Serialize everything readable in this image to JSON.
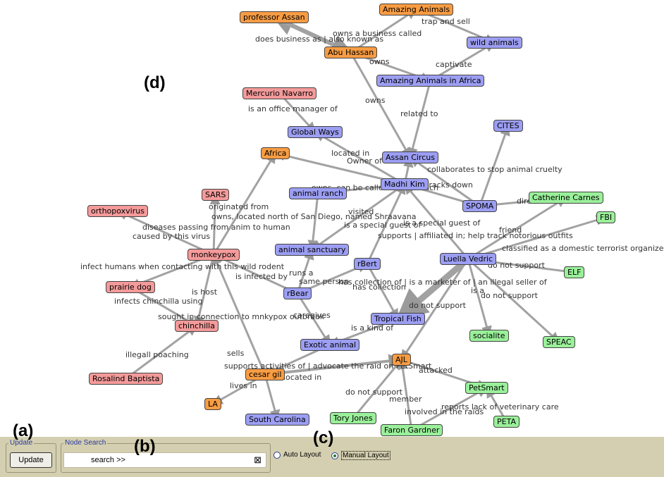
{
  "panel_labels": {
    "a": "(a)",
    "b": "(b)",
    "c": "(c)",
    "d": "(d)"
  },
  "toolbar": {
    "update_group_title": "Update",
    "update_button": "Update",
    "search_group_title": "Node Search",
    "search_value": "search >>",
    "clear_icon": "⊠",
    "auto_layout": "Auto Layout",
    "manual_layout": "Manual Layout",
    "selected_layout": "manual"
  },
  "nodes": [
    {
      "id": "professor_assan",
      "label": "professor Assan",
      "color": "orange"
    },
    {
      "id": "amazing_animals",
      "label": "Amazing Animals",
      "color": "orange"
    },
    {
      "id": "abu_hassan",
      "label": "Abu Hassan",
      "color": "orange"
    },
    {
      "id": "wild_animals",
      "label": "wild animals",
      "color": "blue"
    },
    {
      "id": "amazing_africa",
      "label": "Amazing Animals in Africa",
      "color": "blue"
    },
    {
      "id": "mercurio",
      "label": "Mercurio Navarro",
      "color": "pink"
    },
    {
      "id": "global_ways",
      "label": "Global Ways",
      "color": "blue"
    },
    {
      "id": "cites",
      "label": "CITES",
      "color": "blue"
    },
    {
      "id": "africa",
      "label": "Africa",
      "color": "orange"
    },
    {
      "id": "assan_circus",
      "label": "Assan Circus",
      "color": "blue"
    },
    {
      "id": "madhi_kim",
      "label": "Madhi Kim",
      "color": "blue"
    },
    {
      "id": "animal_ranch",
      "label": "animal ranch",
      "color": "blue"
    },
    {
      "id": "sars",
      "label": "SARS",
      "color": "pink"
    },
    {
      "id": "spoma",
      "label": "SPOMA",
      "color": "blue"
    },
    {
      "id": "catherine",
      "label": "Catherine Carnes",
      "color": "green"
    },
    {
      "id": "orthopoxvirus",
      "label": "orthopoxvirus",
      "color": "pink"
    },
    {
      "id": "fbi",
      "label": "FBI",
      "color": "green"
    },
    {
      "id": "animal_sanctuary",
      "label": "animal sanctuary",
      "color": "blue"
    },
    {
      "id": "monkeypox",
      "label": "monkeypox",
      "color": "pink"
    },
    {
      "id": "luella",
      "label": "Luella Vedric",
      "color": "blue"
    },
    {
      "id": "rbert",
      "label": "rBert",
      "color": "blue"
    },
    {
      "id": "elf",
      "label": "ELF",
      "color": "green"
    },
    {
      "id": "prairie_dog",
      "label": "prairie dog",
      "color": "pink"
    },
    {
      "id": "rbear",
      "label": "rBear",
      "color": "blue"
    },
    {
      "id": "tropical_fish",
      "label": "Tropical Fish",
      "color": "blue"
    },
    {
      "id": "chinchilla",
      "label": "chinchilla",
      "color": "pink"
    },
    {
      "id": "socialite",
      "label": "socialite",
      "color": "green"
    },
    {
      "id": "exotic_animal",
      "label": "Exotic animal",
      "color": "blue"
    },
    {
      "id": "speac",
      "label": "SPEAC",
      "color": "green"
    },
    {
      "id": "ajl",
      "label": "AJL",
      "color": "orange"
    },
    {
      "id": "cesar_gil",
      "label": "cesar gil",
      "color": "orange"
    },
    {
      "id": "rosalind",
      "label": "Rosalind Baptista",
      "color": "pink"
    },
    {
      "id": "petsmart",
      "label": "PetSmart",
      "color": "green"
    },
    {
      "id": "la",
      "label": "LA",
      "color": "orange"
    },
    {
      "id": "tory_jones",
      "label": "Tory Jones",
      "color": "green"
    },
    {
      "id": "peta",
      "label": "PETA",
      "color": "green"
    },
    {
      "id": "south_carolina",
      "label": "South Carolina",
      "color": "blue"
    },
    {
      "id": "faron",
      "label": "Faron Gardner",
      "color": "green"
    }
  ],
  "edge_labels": [
    "owns a business called",
    "does business as | also known as",
    "trap and sell",
    "captivate",
    "owns",
    "owns",
    "related to",
    "is an office manager of",
    "located in",
    "Owner of",
    "collaborates to stop animal cruelty",
    "owns, can be called Texas Ranch",
    "tracks down",
    "director",
    "originated from",
    "owns, located north of San Diego, named Shraavana",
    "visited",
    "is a special guest of",
    "is a special guest of",
    "friend",
    "diseases passing from anim to human",
    "supports | affiliated in; help track notorious outfits",
    "caused by this virus",
    "classified as a domestic terrorist organize",
    "infect humans when contacting with this wild rodent",
    "do not support",
    "is infected by",
    "runs a",
    "same person",
    "has collection of | is a marketer of | an illegal seller of",
    "has collection",
    "is host",
    "is a",
    "do not support",
    "infects chinchilla using",
    "do not support",
    "sought in connection to mnkypox outbreak",
    "caregives",
    "is a kind of",
    "illegall poaching",
    "sells",
    "supports activities of | advocate the raid on PetSmart",
    "attacked",
    "located in",
    "lives in",
    "do not support",
    "member",
    "reports lack of veterinary care",
    "involved in the raids"
  ]
}
